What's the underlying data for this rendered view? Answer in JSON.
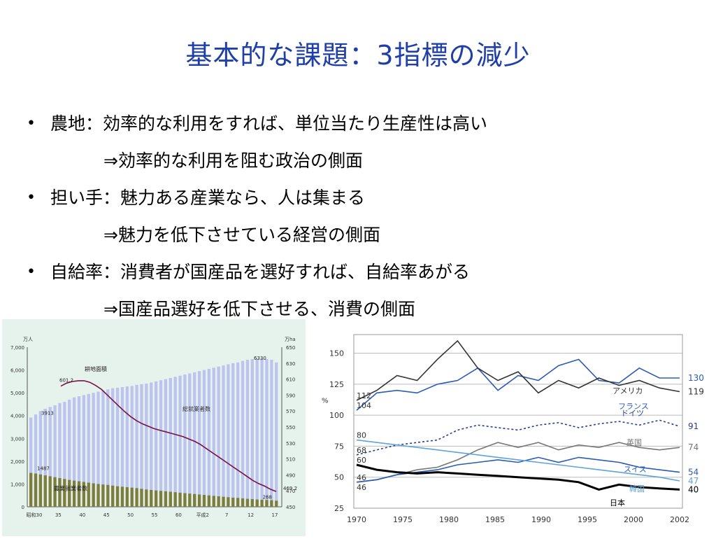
{
  "slide": {
    "title": "基本的な課題：3指標の減少",
    "bullets": [
      {
        "text": "農地：効率的な利用をすれば、単位当たり生産性は高い",
        "sub": "⇒効率的な利用を阻む政治の側面"
      },
      {
        "text": "担い手：魅力ある産業なら、人は集まる",
        "sub": "⇒魅力を低下させている経営の側面"
      },
      {
        "text": "自給率：消費者が国産品を選好すれば、自給率あがる",
        "sub": "⇒国産品選好を低下させる、消費の側面"
      }
    ]
  },
  "chart_data": [
    {
      "type": "bar+line",
      "units_left": "万人",
      "units_right": "万ha",
      "y_left_ticks": [
        "7,000",
        "6,000",
        "5,000",
        "4,000",
        "3,000",
        "2,000",
        "1,000",
        "0"
      ],
      "y_right_ticks": [
        "650",
        "630",
        "610",
        "590",
        "570",
        "550",
        "530",
        "510",
        "490",
        "470",
        "450"
      ],
      "x_ticks": [
        "昭和30",
        "35",
        "40",
        "45",
        "50",
        "55",
        "60",
        "平成2",
        "7",
        "12",
        "17"
      ],
      "ylim_left": [
        0,
        7000
      ],
      "ylim_right": [
        450,
        650
      ],
      "series": [
        {
          "name": "総就業者数",
          "axis": "left",
          "kind": "bar",
          "values": [
            3913,
            4050,
            4200,
            4300,
            4380,
            4450,
            4550,
            4600,
            4700,
            4800,
            4850,
            4900,
            4950,
            5000,
            5050,
            5100,
            5150,
            5200,
            5220,
            5250,
            5280,
            5300,
            5350,
            5380,
            5400,
            5450,
            5500,
            5550,
            5600,
            5650,
            5700,
            5750,
            5800,
            5850,
            5900,
            5950,
            6000,
            6050,
            6100,
            6150,
            6200,
            6250,
            6300,
            6330,
            6400,
            6450,
            6480,
            6500,
            6500,
            6480,
            6450,
            6330
          ]
        },
        {
          "name": "農業就業者数",
          "axis": "left",
          "kind": "bar",
          "values": [
            1487,
            1460,
            1420,
            1380,
            1340,
            1300,
            1260,
            1220,
            1180,
            1150,
            1120,
            1090,
            1060,
            1030,
            1000,
            980,
            960,
            930,
            900,
            880,
            860,
            840,
            820,
            790,
            760,
            740,
            720,
            700,
            680,
            660,
            640,
            620,
            600,
            580,
            560,
            540,
            520,
            500,
            480,
            460,
            440,
            420,
            400,
            390,
            370,
            350,
            340,
            320,
            310,
            300,
            290,
            268
          ]
        },
        {
          "name": "耕地面積",
          "axis": "right",
          "kind": "line",
          "values": [
            601.2,
            605,
            607,
            608,
            608,
            606,
            602,
            597,
            590,
            583,
            576,
            569,
            563,
            558,
            554,
            551,
            548,
            546,
            544,
            542,
            540,
            538,
            535,
            532,
            528,
            523,
            518,
            513,
            508,
            503,
            498,
            493,
            488,
            483,
            479,
            476,
            472,
            469.2
          ]
        }
      ],
      "annotations": [
        "601.2",
        "3913",
        "1487",
        "6330",
        "268",
        "469.2"
      ]
    },
    {
      "type": "line",
      "x_ticks": [
        "1970",
        "1975",
        "1980",
        "1985",
        "1990",
        "1995",
        "2000",
        "2002"
      ],
      "y_ticks": [
        "150",
        "125",
        "100",
        "75",
        "50",
        "25"
      ],
      "ylabel": "%",
      "ylim": [
        25,
        165
      ],
      "x": [
        1970,
        1972,
        1974,
        1976,
        1978,
        1980,
        1982,
        1984,
        1986,
        1988,
        1990,
        1992,
        1994,
        1996,
        1998,
        2000,
        2002
      ],
      "series": [
        {
          "name": "フランス",
          "end_label": "130",
          "color": "#2a5bb8",
          "values": [
            104,
            118,
            120,
            118,
            125,
            128,
            138,
            120,
            132,
            128,
            140,
            145,
            128,
            126,
            138,
            130,
            130
          ]
        },
        {
          "name": "アメリカ",
          "end_label": "119",
          "color": "#333333",
          "values": [
            112,
            120,
            132,
            128,
            145,
            160,
            138,
            128,
            135,
            118,
            128,
            122,
            130,
            124,
            128,
            122,
            119
          ]
        },
        {
          "name": "ドイツ",
          "end_label": "91",
          "color": "#2a3f8f",
          "values": [
            68,
            72,
            76,
            78,
            80,
            88,
            92,
            90,
            88,
            92,
            94,
            90,
            93,
            95,
            92,
            96,
            91
          ]
        },
        {
          "name": "英国",
          "end_label": "74",
          "color": "#777777",
          "values": [
            46,
            48,
            52,
            56,
            58,
            64,
            72,
            78,
            74,
            78,
            72,
            76,
            74,
            78,
            74,
            72,
            74
          ]
        },
        {
          "name": "スイス",
          "end_label": "54",
          "color": "#2a5bb8",
          "values": [
            46,
            48,
            52,
            54,
            56,
            60,
            62,
            64,
            62,
            66,
            62,
            66,
            64,
            62,
            58,
            56,
            54
          ]
        },
        {
          "name": "韓国",
          "end_label": "47",
          "color": "#5fa3dc",
          "values": [
            80,
            78,
            76,
            74,
            72,
            70,
            68,
            66,
            64,
            62,
            60,
            58,
            56,
            54,
            52,
            50,
            47
          ]
        },
        {
          "name": "日本",
          "end_label": "40",
          "color": "#000000",
          "values": [
            60,
            56,
            54,
            53,
            54,
            53,
            52,
            51,
            50,
            49,
            48,
            46,
            40,
            44,
            42,
            41,
            40
          ]
        }
      ],
      "start_labels": [
        "112",
        "104",
        "80",
        "68",
        "60",
        "46",
        "46"
      ]
    }
  ]
}
